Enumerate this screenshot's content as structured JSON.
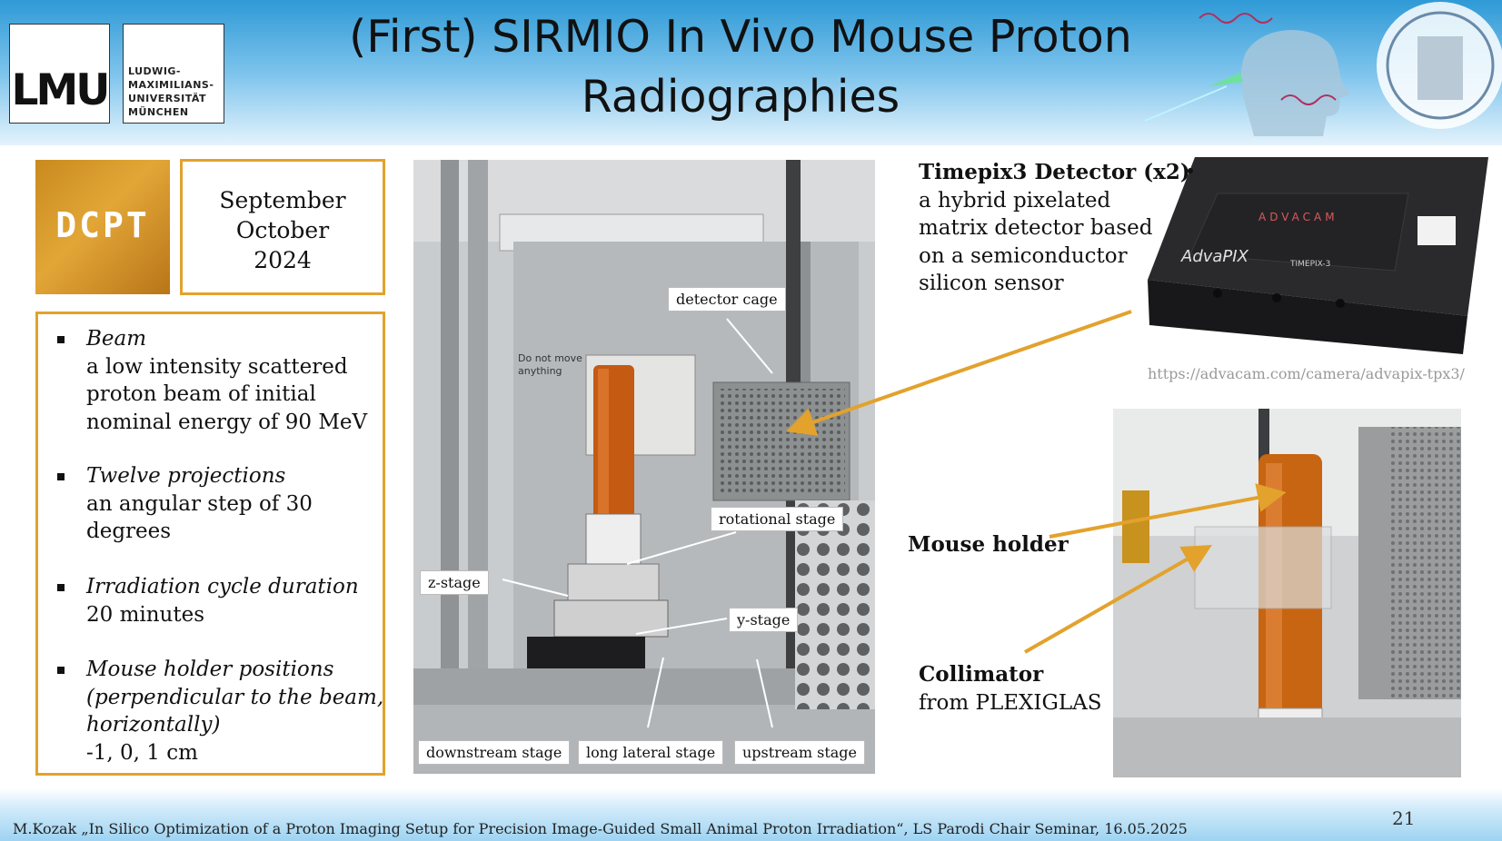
{
  "header": {
    "title_line1": "(First) SIRMIO In Vivo Mouse Proton",
    "title_line2": "Radiographies",
    "logo_lmu": "LMU",
    "logo_name": [
      "LUDWIG-",
      "MAXIMILIANS-",
      "UNIVERSITÄT",
      "MÜNCHEN"
    ]
  },
  "dcpt_logo": "DCPT",
  "date": [
    "September",
    "October",
    "2024"
  ],
  "bullets": [
    {
      "title": "Beam",
      "body": [
        "a low intensity scattered",
        "proton beam of initial",
        "nominal energy of 90 MeV"
      ]
    },
    {
      "title": "Twelve projections",
      "body": [
        "an angular step of 30",
        "degrees"
      ]
    },
    {
      "title": "Irradiation cycle duration",
      "body": [
        "20 minutes"
      ]
    },
    {
      "title": "Mouse holder positions",
      "title_extra": [
        "(perpendicular to the beam,",
        "horizontally)"
      ],
      "body": [
        "-1, 0, 1 cm"
      ]
    }
  ],
  "photo_labels": {
    "detector_cage": "detector cage",
    "rotational_stage": "rotational stage",
    "z_stage": "z-stage",
    "y_stage": "y-stage",
    "downstream_stage": "downstream stage",
    "long_lateral_stage": "long lateral stage",
    "upstream_stage": "upstream stage"
  },
  "handwritten_note": [
    "Do not move",
    "anything"
  ],
  "detector": {
    "title": "Timepix3 Detector (x2)",
    "desc": [
      "a hybrid pixelated",
      "matrix detector based",
      "on a semiconductor",
      "silicon sensor"
    ],
    "brand": "ADVACAM",
    "product": "AdvaPIX",
    "model": "TIMEPIX-3",
    "url": "https://advacam.com/camera/advapix-tpx3/"
  },
  "mouse_holder": "Mouse holder",
  "collimator": {
    "title": "Collimator",
    "desc": "from PLEXIGLAS"
  },
  "footer": {
    "text": "M.Kozak „In Silico Optimization of a Proton Imaging Setup for Precision Image-Guided Small Animal Proton Irradiation“,  LS Parodi Chair Seminar, 16.05.2025",
    "page": "21"
  },
  "colors": {
    "accent": "#e2a22c",
    "header_blue": "#2f9ad6",
    "arrow": "#e2a22c"
  }
}
